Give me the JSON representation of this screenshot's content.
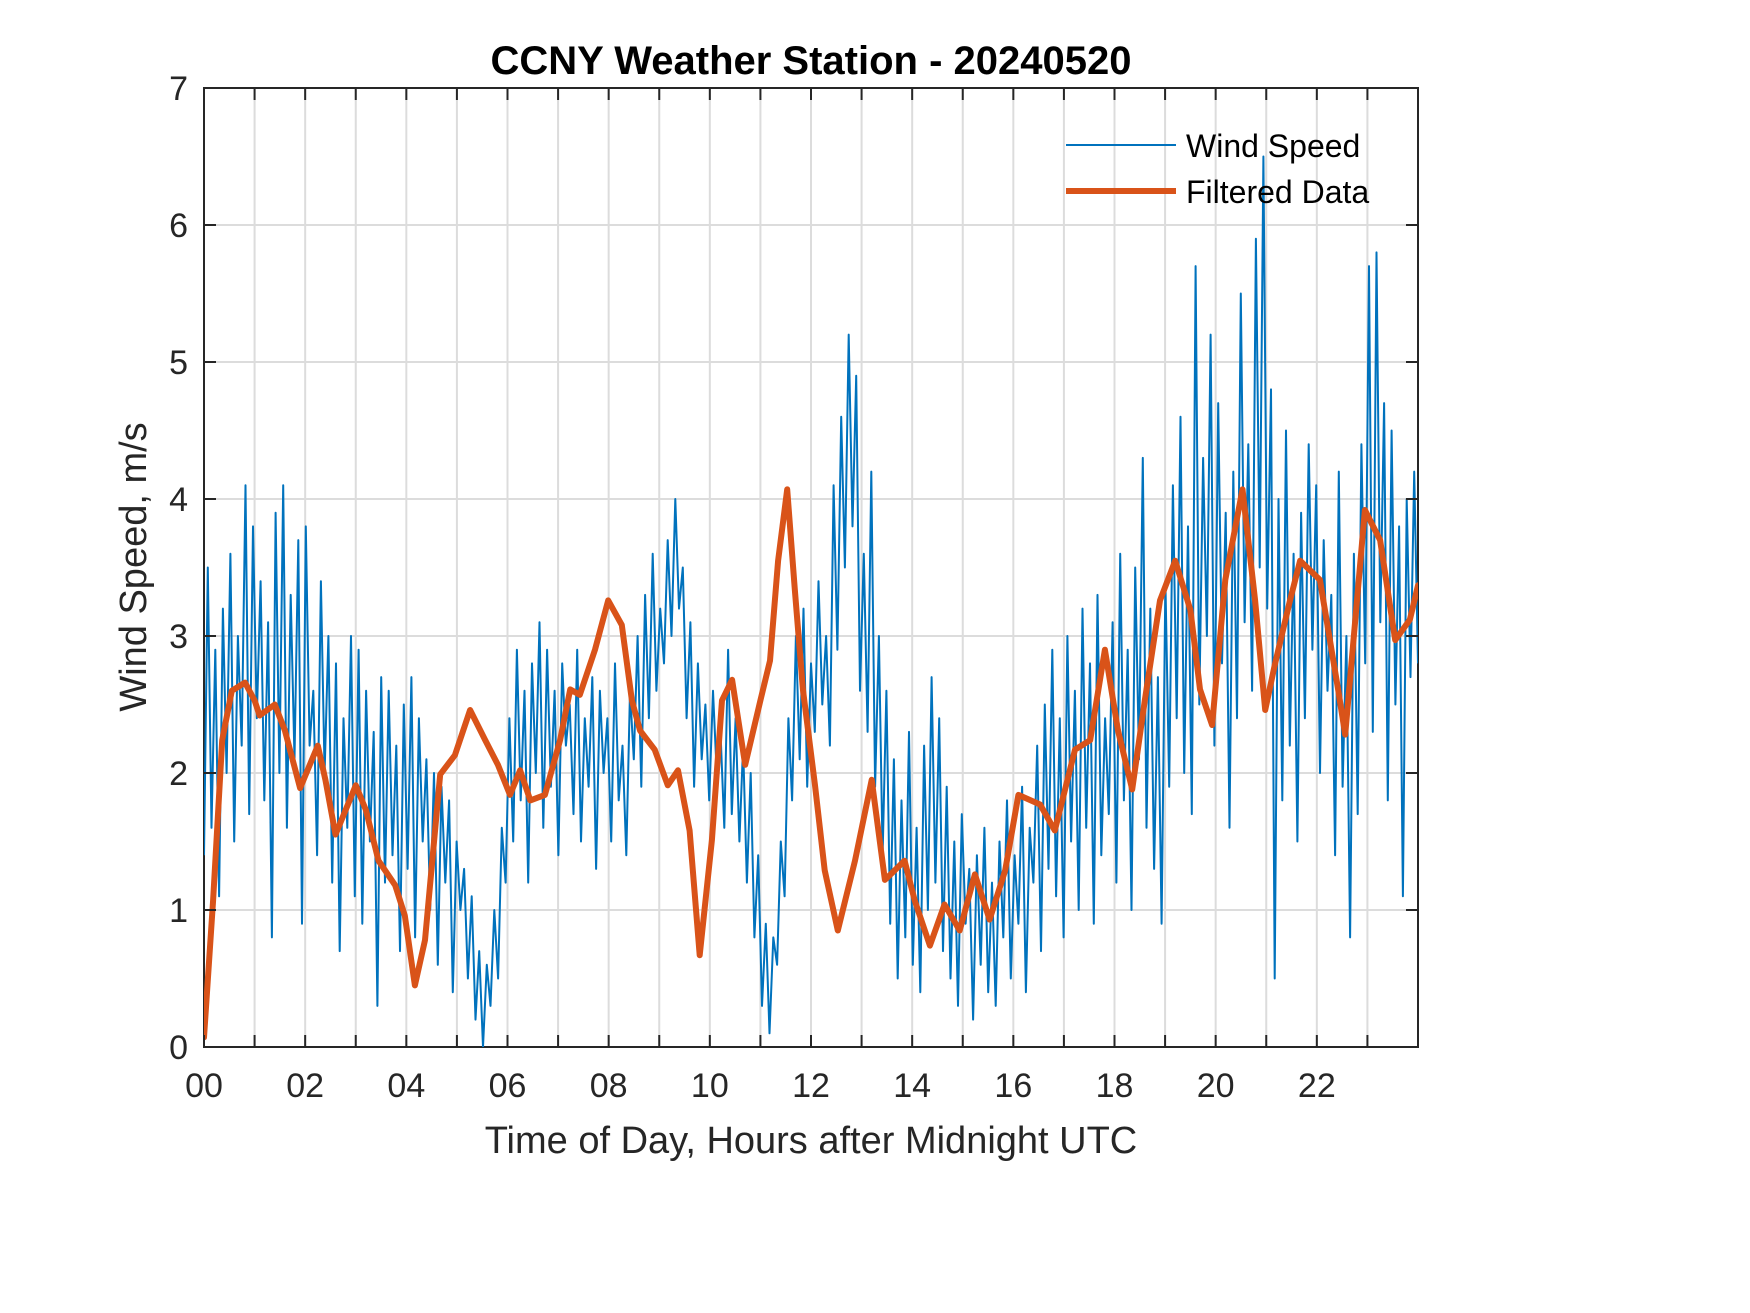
{
  "chart_data": {
    "type": "line",
    "title": "CCNY Weather Station - 20240520",
    "xlabel": "Time of Day, Hours after Midnight UTC",
    "ylabel": "Wind Speed, m/s",
    "xlim": [
      0,
      24
    ],
    "ylim": [
      0,
      7
    ],
    "grid": true,
    "x_ticks": [
      0,
      1,
      2,
      3,
      4,
      5,
      6,
      7,
      8,
      9,
      10,
      11,
      12,
      13,
      14,
      15,
      16,
      17,
      18,
      19,
      20,
      21,
      22,
      23
    ],
    "x_tick_labels": [
      {
        "x": 0,
        "label": "00"
      },
      {
        "x": 2,
        "label": "02"
      },
      {
        "x": 4,
        "label": "04"
      },
      {
        "x": 6,
        "label": "06"
      },
      {
        "x": 8,
        "label": "08"
      },
      {
        "x": 10,
        "label": "10"
      },
      {
        "x": 12,
        "label": "12"
      },
      {
        "x": 14,
        "label": "14"
      },
      {
        "x": 16,
        "label": "16"
      },
      {
        "x": 18,
        "label": "18"
      },
      {
        "x": 20,
        "label": "20"
      },
      {
        "x": 22,
        "label": "22"
      }
    ],
    "y_ticks": [
      0,
      1,
      2,
      3,
      4,
      5,
      6,
      7
    ],
    "y_tick_labels": [
      "0",
      "1",
      "2",
      "3",
      "4",
      "5",
      "6",
      "7"
    ],
    "legend": {
      "placement": "top-right",
      "entries": [
        {
          "name": "Wind Speed",
          "color": "#0072BD"
        },
        {
          "name": "Filtered Data",
          "color": "#D95319"
        }
      ]
    },
    "series": [
      {
        "name": "Wind Speed",
        "color": "#0072BD",
        "x_start": 0,
        "x_step": 0.05,
        "values": [
          1.4,
          3.5,
          1.6,
          2.9,
          1.1,
          3.2,
          2.0,
          3.6,
          1.5,
          3.0,
          2.2,
          4.1,
          1.7,
          3.8,
          2.4,
          3.4,
          1.8,
          3.1,
          0.8,
          3.9,
          2.0,
          4.1,
          1.6,
          3.3,
          2.1,
          3.7,
          0.9,
          3.8,
          2.2,
          2.6,
          1.4,
          3.4,
          2.0,
          3.0,
          1.2,
          2.8,
          0.7,
          2.4,
          1.6,
          3.0,
          1.1,
          2.9,
          0.9,
          2.6,
          1.5,
          2.3,
          0.3,
          2.7,
          1.2,
          2.6,
          1.4,
          2.2,
          0.7,
          2.5,
          1.3,
          2.7,
          0.8,
          2.4,
          1.5,
          2.1,
          1.0,
          2.0,
          0.6,
          1.9,
          1.2,
          1.8,
          0.4,
          1.5,
          1.0,
          1.3,
          0.5,
          1.1,
          0.2,
          0.7,
          0.0,
          0.6,
          0.3,
          1.0,
          0.5,
          1.6,
          1.2,
          2.4,
          1.5,
          2.9,
          1.8,
          2.6,
          1.2,
          2.8,
          2.0,
          3.1,
          1.6,
          2.9,
          1.9,
          2.6,
          1.4,
          2.8,
          2.2,
          2.5,
          1.7,
          2.9,
          1.5,
          2.4,
          1.9,
          2.7,
          1.3,
          2.6,
          2.0,
          2.4,
          1.5,
          2.8,
          1.8,
          2.2,
          1.4,
          2.6,
          2.1,
          3.0,
          1.9,
          3.3,
          2.4,
          3.6,
          2.6,
          3.2,
          2.8,
          3.7,
          3.0,
          4.0,
          3.2,
          3.5,
          2.4,
          3.1,
          1.9,
          2.8,
          2.1,
          2.5,
          1.8,
          2.6,
          2.0,
          2.3,
          1.6,
          2.9,
          1.7,
          2.4,
          1.5,
          2.2,
          1.2,
          2.0,
          0.8,
          1.4,
          0.3,
          0.9,
          0.1,
          0.8,
          0.6,
          1.5,
          1.1,
          2.4,
          1.8,
          3.0,
          2.1,
          3.2,
          1.9,
          2.8,
          2.3,
          3.4,
          2.5,
          3.0,
          2.2,
          4.1,
          2.9,
          4.6,
          3.5,
          5.2,
          3.8,
          4.9,
          2.6,
          3.6,
          2.3,
          4.2,
          1.9,
          3.0,
          1.4,
          2.6,
          0.9,
          2.1,
          0.5,
          1.8,
          0.8,
          2.3,
          0.6,
          1.6,
          0.4,
          2.2,
          1.0,
          2.7,
          1.2,
          2.4,
          0.7,
          1.9,
          0.5,
          1.5,
          0.3,
          1.7,
          0.9,
          1.3,
          0.2,
          1.4,
          0.6,
          1.6,
          0.4,
          1.2,
          0.3,
          1.5,
          0.8,
          1.8,
          0.5,
          1.4,
          0.9,
          1.9,
          0.4,
          1.6,
          1.2,
          2.2,
          0.7,
          2.5,
          1.3,
          2.9,
          1.1,
          2.4,
          0.8,
          3.0,
          1.5,
          2.6,
          1.0,
          3.2,
          1.6,
          2.8,
          0.9,
          3.3,
          1.4,
          2.4,
          1.7,
          3.1,
          1.2,
          3.6,
          1.8,
          2.9,
          1.0,
          3.5,
          2.1,
          4.3,
          1.6,
          3.2,
          1.3,
          2.7,
          0.9,
          3.4,
          1.9,
          4.1,
          2.4,
          4.6,
          2.0,
          3.8,
          1.7,
          5.7,
          2.5,
          4.3,
          3.0,
          5.2,
          2.2,
          4.7,
          2.8,
          3.9,
          1.6,
          4.2,
          2.4,
          5.5,
          3.1,
          4.4,
          2.6,
          5.9,
          3.5,
          6.5,
          3.2,
          4.8,
          0.5,
          4.0,
          1.8,
          4.5,
          2.2,
          3.6,
          1.5,
          3.9,
          2.4,
          4.4,
          2.9,
          4.1,
          2.0,
          3.7,
          2.6,
          3.3,
          1.4,
          4.2,
          1.9,
          3.0,
          0.8,
          3.6,
          1.7,
          4.4,
          2.8,
          5.7,
          2.3,
          5.8,
          3.1,
          4.7,
          1.8,
          4.5,
          2.5,
          3.8,
          1.1,
          4.0,
          2.7,
          4.2,
          2.8
        ]
      },
      {
        "name": "Filtered Data",
        "color": "#D95319",
        "points": [
          [
            0,
            0.07
          ],
          [
            0.18,
            1.07
          ],
          [
            0.36,
            2.24
          ],
          [
            0.55,
            2.6
          ],
          [
            0.81,
            2.66
          ],
          [
            1.0,
            2.53
          ],
          [
            1.1,
            2.42
          ],
          [
            1.4,
            2.5
          ],
          [
            1.6,
            2.31
          ],
          [
            1.9,
            1.89
          ],
          [
            2.25,
            2.2
          ],
          [
            2.4,
            1.95
          ],
          [
            2.6,
            1.55
          ],
          [
            3.0,
            1.91
          ],
          [
            3.2,
            1.73
          ],
          [
            3.45,
            1.36
          ],
          [
            3.78,
            1.18
          ],
          [
            3.97,
            0.96
          ],
          [
            4.17,
            0.45
          ],
          [
            4.37,
            0.78
          ],
          [
            4.67,
            1.99
          ],
          [
            4.96,
            2.13
          ],
          [
            5.26,
            2.46
          ],
          [
            5.56,
            2.24
          ],
          [
            5.81,
            2.06
          ],
          [
            6.05,
            1.84
          ],
          [
            6.25,
            2.02
          ],
          [
            6.45,
            1.8
          ],
          [
            6.74,
            1.84
          ],
          [
            7.04,
            2.24
          ],
          [
            7.24,
            2.61
          ],
          [
            7.43,
            2.57
          ],
          [
            7.73,
            2.9
          ],
          [
            7.99,
            3.26
          ],
          [
            8.26,
            3.08
          ],
          [
            8.46,
            2.53
          ],
          [
            8.62,
            2.31
          ],
          [
            8.91,
            2.17
          ],
          [
            9.17,
            1.91
          ],
          [
            9.37,
            2.02
          ],
          [
            9.6,
            1.58
          ],
          [
            9.8,
            0.67
          ],
          [
            10.04,
            1.51
          ],
          [
            10.24,
            2.53
          ],
          [
            10.44,
            2.68
          ],
          [
            10.7,
            2.06
          ],
          [
            11.0,
            2.53
          ],
          [
            11.19,
            2.82
          ],
          [
            11.35,
            3.55
          ],
          [
            11.53,
            4.07
          ],
          [
            11.68,
            3.34
          ],
          [
            11.84,
            2.61
          ],
          [
            12.08,
            1.91
          ],
          [
            12.27,
            1.29
          ],
          [
            12.53,
            0.85
          ],
          [
            12.87,
            1.36
          ],
          [
            13.2,
            1.95
          ],
          [
            13.46,
            1.22
          ],
          [
            13.85,
            1.36
          ],
          [
            14.05,
            1.07
          ],
          [
            14.35,
            0.74
          ],
          [
            14.64,
            1.04
          ],
          [
            14.94,
            0.85
          ],
          [
            15.24,
            1.26
          ],
          [
            15.53,
            0.93
          ],
          [
            15.84,
            1.29
          ],
          [
            16.1,
            1.84
          ],
          [
            16.53,
            1.77
          ],
          [
            16.82,
            1.58
          ],
          [
            17.22,
            2.17
          ],
          [
            17.52,
            2.24
          ],
          [
            17.81,
            2.9
          ],
          [
            18.07,
            2.31
          ],
          [
            18.35,
            1.88
          ],
          [
            18.6,
            2.53
          ],
          [
            18.9,
            3.26
          ],
          [
            19.2,
            3.55
          ],
          [
            19.5,
            3.19
          ],
          [
            19.69,
            2.61
          ],
          [
            19.93,
            2.35
          ],
          [
            20.19,
            3.41
          ],
          [
            20.53,
            4.07
          ],
          [
            20.78,
            3.26
          ],
          [
            20.98,
            2.46
          ],
          [
            21.17,
            2.79
          ],
          [
            21.47,
            3.26
          ],
          [
            21.67,
            3.55
          ],
          [
            22.06,
            3.41
          ],
          [
            22.42,
            2.61
          ],
          [
            22.56,
            2.28
          ],
          [
            22.76,
            3.12
          ],
          [
            22.95,
            3.92
          ],
          [
            23.25,
            3.7
          ],
          [
            23.55,
            2.97
          ],
          [
            23.84,
            3.12
          ],
          [
            24.0,
            3.37
          ]
        ]
      }
    ]
  }
}
